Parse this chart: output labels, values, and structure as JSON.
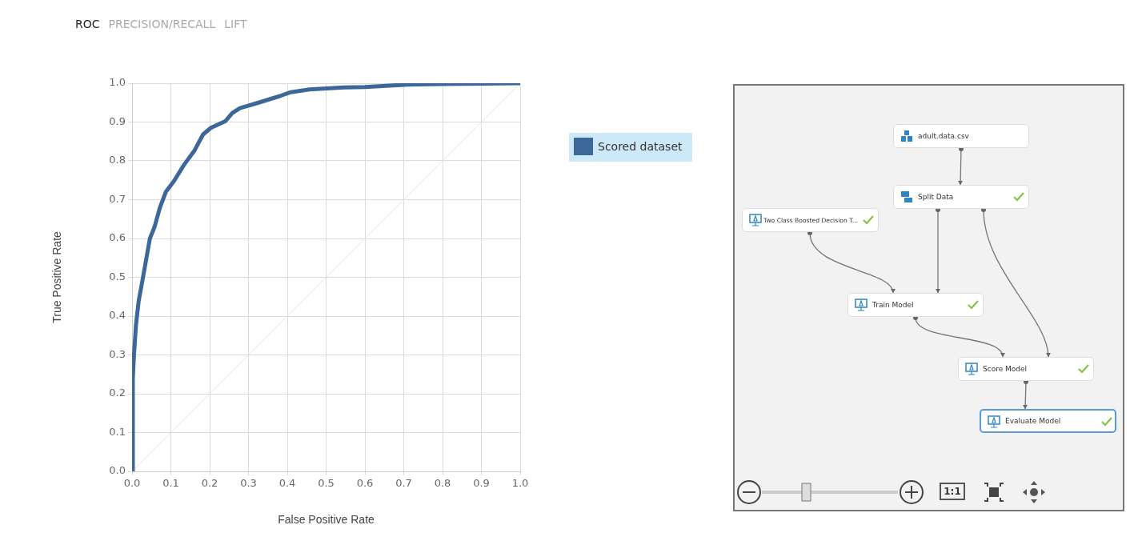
{
  "chart_data": [
    {
      "type": "line",
      "xlabel": "False Positive Rate",
      "ylabel": "True Positive Rate",
      "xlim": [
        0,
        1
      ],
      "ylim": [
        0,
        1
      ],
      "xticks": [
        {
          "value": 0,
          "label": "0.0"
        },
        0.1,
        0.2,
        0.3,
        0.4,
        0.5,
        0.6,
        0.7,
        0.8,
        0.9,
        {
          "value": 1,
          "label": "1.0"
        }
      ],
      "yticks": [
        {
          "value": 0,
          "label": "0.0"
        },
        0.1,
        0.2,
        0.3,
        0.4,
        0.5,
        0.6,
        0.7,
        0.8,
        0.9,
        {
          "value": 1,
          "label": "1.0"
        }
      ],
      "grid": true,
      "legend": "right",
      "marker": "none",
      "line_style": "solid",
      "annotations": [
        "ROC",
        "PRECISION/RECALL",
        "LIFT"
      ],
      "series": [
        {
          "name": "Scored dataset",
          "color": "#3c6799",
          "x": [
            0,
            0.002,
            0.002,
            0.005,
            0.01,
            0.017,
            0.027,
            0.038,
            0.046,
            0.058,
            0.072,
            0.087,
            0.108,
            0.134,
            0.161,
            0.183,
            0.203,
            0.24,
            0.258,
            0.278,
            0.326,
            0.381,
            0.409,
            0.457,
            0.546,
            0.6,
            0.7,
            0.8,
            0.9,
            1
          ],
          "values": [
            0,
            0,
            0.24,
            0.3,
            0.376,
            0.438,
            0.493,
            0.555,
            0.6,
            0.63,
            0.68,
            0.72,
            0.748,
            0.79,
            0.827,
            0.868,
            0.885,
            0.902,
            0.923,
            0.936,
            0.95,
            0.967,
            0.977,
            0.984,
            0.989,
            0.99,
            0.996,
            0.998,
            0.999,
            1
          ]
        },
        {
          "color": "#e6e6e6",
          "x": [
            0,
            1
          ],
          "values": [
            0,
            1
          ]
        }
      ]
    },
    {
      "type": "other",
      "annotations": [
        "adult.data.csv",
        "Split Data",
        "Two Class Boosted Decision T...",
        "Train Model",
        "Score Model",
        "Evaluate Model",
        "1:1"
      ]
    }
  ]
}
